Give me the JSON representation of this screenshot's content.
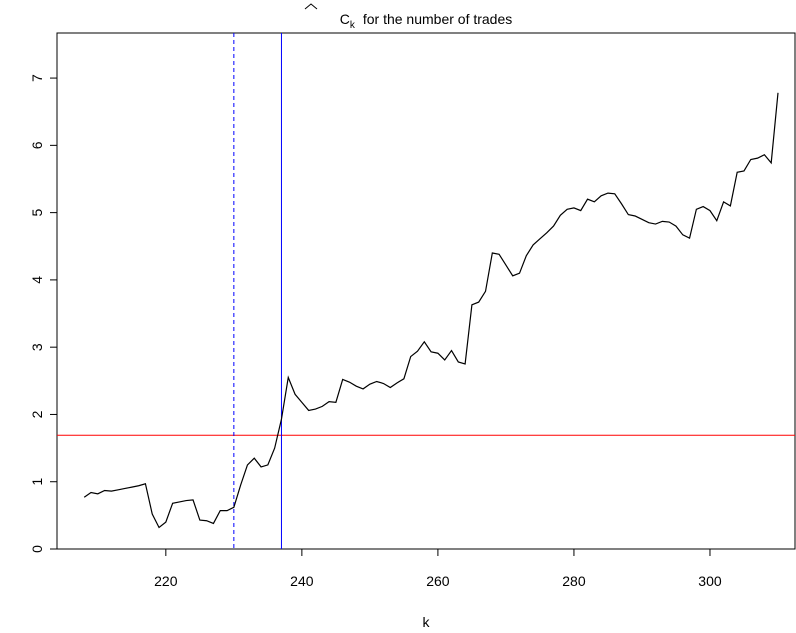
{
  "chart_data": {
    "type": "line",
    "title": {
      "symbol": "C",
      "subscript": "k",
      "text": "for the number of trades"
    },
    "x_label": "k",
    "x": [
      208,
      209,
      210,
      211,
      212,
      213,
      214,
      215,
      216,
      217,
      218,
      219,
      220,
      221,
      222,
      223,
      224,
      225,
      226,
      227,
      228,
      229,
      230,
      231,
      232,
      233,
      234,
      235,
      236,
      237,
      238,
      239,
      240,
      241,
      242,
      243,
      244,
      245,
      246,
      247,
      248,
      249,
      250,
      251,
      252,
      253,
      254,
      255,
      256,
      257,
      258,
      259,
      260,
      261,
      262,
      263,
      264,
      265,
      266,
      267,
      268,
      269,
      270,
      271,
      272,
      273,
      274,
      275,
      276,
      277,
      278,
      279,
      280,
      281,
      282,
      283,
      284,
      285,
      286,
      287,
      288,
      289,
      290,
      291,
      292,
      293,
      294,
      295,
      296,
      297,
      298,
      299,
      300,
      301,
      302,
      303,
      304,
      305,
      306,
      307,
      308,
      309,
      310
    ],
    "values": [
      0.77,
      0.84,
      0.82,
      0.87,
      0.86,
      0.88,
      0.9,
      0.92,
      0.94,
      0.97,
      0.52,
      0.32,
      0.4,
      0.68,
      0.7,
      0.72,
      0.73,
      0.43,
      0.42,
      0.38,
      0.57,
      0.57,
      0.62,
      0.95,
      1.25,
      1.35,
      1.22,
      1.25,
      1.5,
      1.93,
      2.55,
      2.3,
      2.18,
      2.06,
      2.08,
      2.12,
      2.19,
      2.18,
      2.52,
      2.48,
      2.42,
      2.38,
      2.45,
      2.49,
      2.46,
      2.4,
      2.47,
      2.53,
      2.86,
      2.94,
      3.08,
      2.93,
      2.91,
      2.81,
      2.95,
      2.78,
      2.75,
      3.63,
      3.67,
      3.83,
      4.4,
      4.38,
      4.22,
      4.06,
      4.1,
      4.36,
      4.52,
      4.61,
      4.7,
      4.8,
      4.96,
      5.05,
      5.07,
      5.03,
      5.2,
      5.16,
      5.25,
      5.29,
      5.28,
      5.13,
      4.97,
      4.95,
      4.9,
      4.85,
      4.83,
      4.87,
      4.86,
      4.8,
      4.67,
      4.62,
      5.05,
      5.09,
      5.03,
      4.88,
      5.16,
      5.1,
      5.6,
      5.62,
      5.79,
      5.81,
      5.86,
      5.74,
      6.78
    ],
    "color": "#000000",
    "xlim": [
      204,
      312.5
    ],
    "ylim": [
      0,
      7.67
    ],
    "xticks": [
      220,
      240,
      260,
      280,
      300
    ],
    "yticks": [
      0,
      1,
      2,
      3,
      4,
      5,
      6,
      7
    ],
    "hlines": [
      {
        "value": 1.69,
        "color": "#ff0000",
        "dashed": false
      }
    ],
    "vlines": [
      {
        "value": 230,
        "color": "#0000ff",
        "dashed": true
      },
      {
        "value": 237,
        "color": "#0000ff",
        "dashed": false
      }
    ]
  }
}
